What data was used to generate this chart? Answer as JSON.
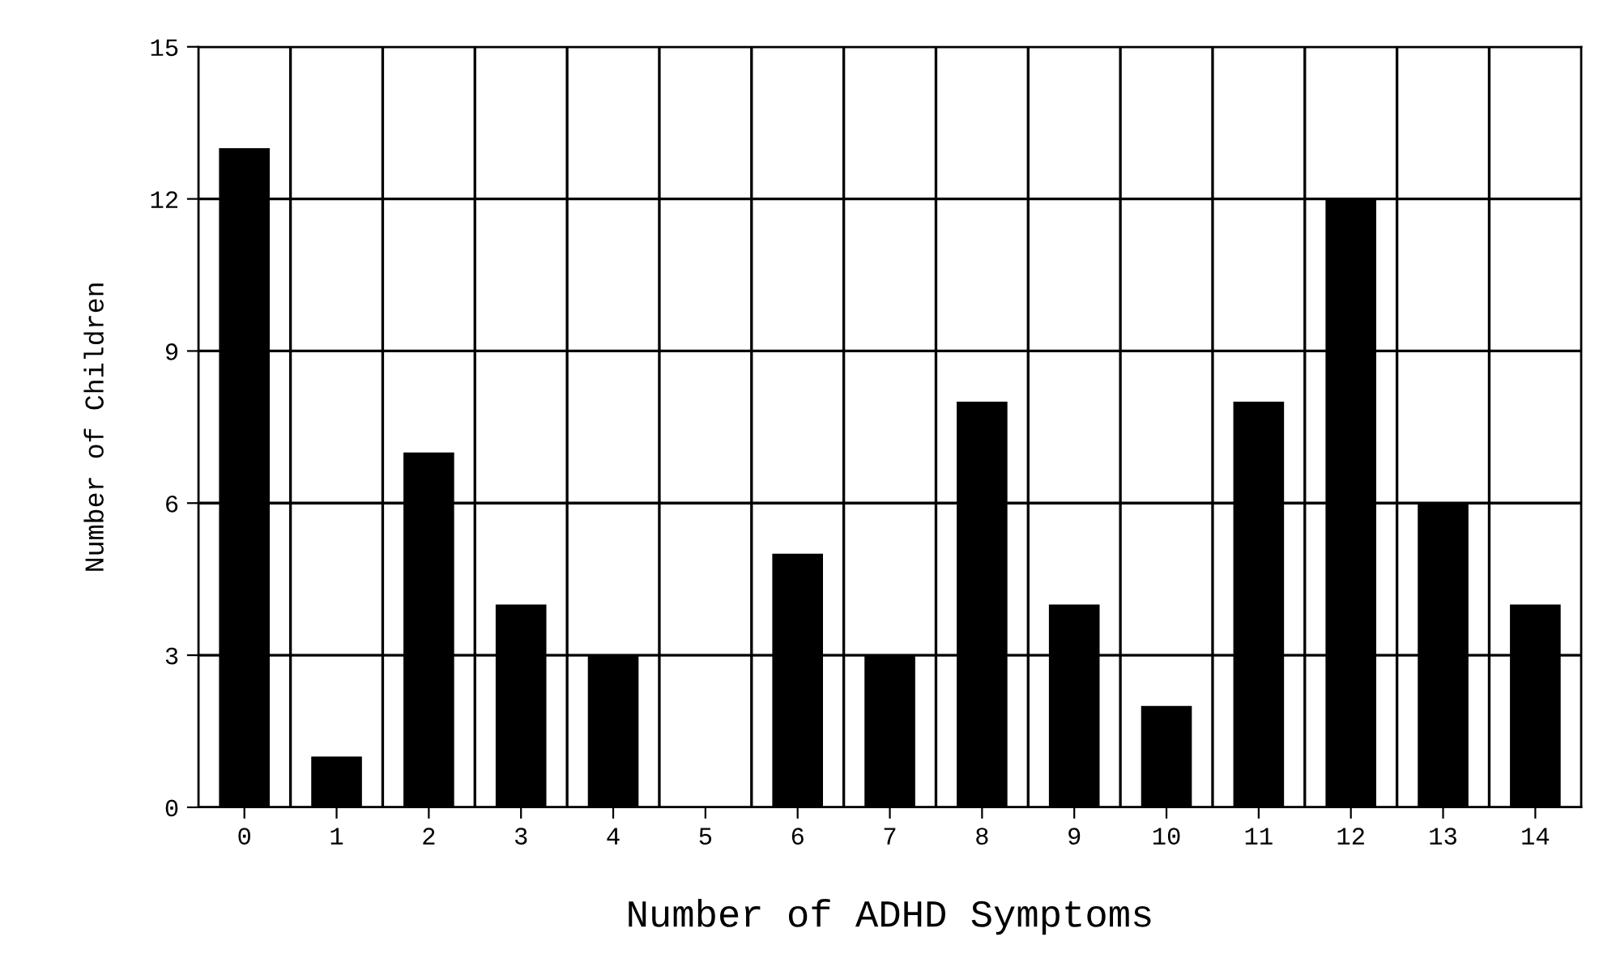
{
  "chart_data": {
    "type": "bar",
    "xlabel": "Number of ADHD Symptoms",
    "ylabel": "Number of Children",
    "categories": [
      "0",
      "1",
      "2",
      "3",
      "4",
      "5",
      "6",
      "7",
      "8",
      "9",
      "10",
      "11",
      "12",
      "13",
      "14"
    ],
    "values": [
      13,
      1,
      7,
      4,
      3,
      0,
      5,
      3,
      8,
      4,
      2,
      8,
      12,
      6,
      4
    ],
    "color": "#000000",
    "ylim": [
      0,
      15
    ],
    "yticks": [
      0,
      3,
      6,
      9,
      12,
      15
    ],
    "grid": true
  }
}
